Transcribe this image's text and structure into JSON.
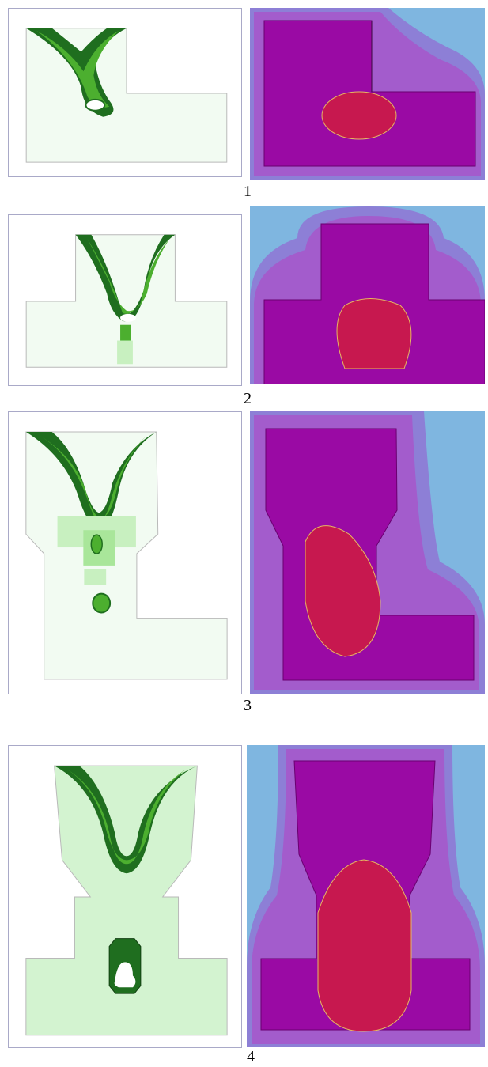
{
  "figure": {
    "rows": [
      {
        "caption": "1"
      },
      {
        "caption": "2"
      },
      {
        "caption": "3"
      },
      {
        "caption": "4"
      }
    ]
  },
  "colors": {
    "part_fill": "#f2fbf2",
    "part_outline": "#b9b9b9",
    "shrink_dark": "#1f6e1f",
    "shrink_mid": "#4caf2f",
    "shrink_light": "#9be07a",
    "mold_outer": "#8d7fd6",
    "mold_inner": "#a35ccc",
    "casting": "#9a0aa4",
    "hot_spot": "#c7184f",
    "background_blue": "#7fb6e0"
  }
}
